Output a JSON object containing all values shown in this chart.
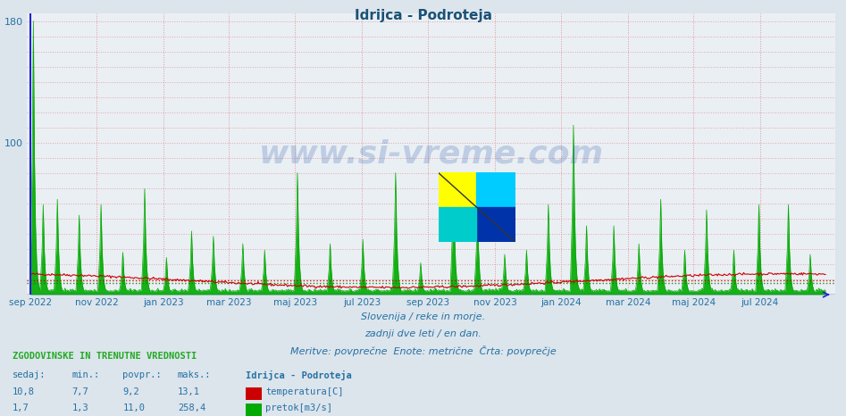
{
  "title": "Idrijca - Podroteja",
  "title_color": "#1a5276",
  "bg_color": "#dce4ec",
  "plot_bg_color": "#eaeff4",
  "grid_color": "#dd8888",
  "xlabel_color": "#2471a3",
  "ylim": [
    0,
    180
  ],
  "yticks": [
    100,
    180
  ],
  "temp_color": "#cc0000",
  "flow_color": "#00aa00",
  "avg_temp_color": "#cc0000",
  "avg_flow_color": "#008800",
  "blue_line_color": "#2222cc",
  "footer_line1": "Slovenija / reke in morje.",
  "footer_line2": "zadnji dve leti / en dan.",
  "footer_line3": "Meritve: povprečne  Enote: metrične  Črta: povprečje",
  "footer_color": "#2471a3",
  "table_header": "ZGODOVINSKE IN TRENUTNE VREDNOSTI",
  "table_col1": "sedaj:",
  "table_col2": "min.:",
  "table_col3": "povpr.:",
  "table_col4": "maks.:",
  "table_station": "Idrijca - Podroteja",
  "temp_sedaj": "10,8",
  "temp_min": "7,7",
  "temp_povpr": "9,2",
  "temp_maks": "13,1",
  "temp_label": "temperatura[C]",
  "flow_sedaj": "1,7",
  "flow_min": "1,3",
  "flow_povpr": "11,0",
  "flow_maks": "258,4",
  "flow_label": "pretok[m3/s]",
  "xticklabels": [
    "sep 2022",
    "nov 2022",
    "jan 2023",
    "mar 2023",
    "maj 2023",
    "jul 2023",
    "sep 2023",
    "nov 2023",
    "jan 2024",
    "mar 2024",
    "maj 2024",
    "jul 2024"
  ],
  "xtick_positions_days": [
    0,
    61,
    122,
    182,
    243,
    304,
    365,
    426,
    487,
    548,
    608,
    669
  ],
  "temp_avg": 9.2,
  "flow_avg_ms": 11.0,
  "flow_max_ms": 258.4,
  "y_max": 180,
  "watermark": "www.si-vreme.com",
  "N": 730
}
